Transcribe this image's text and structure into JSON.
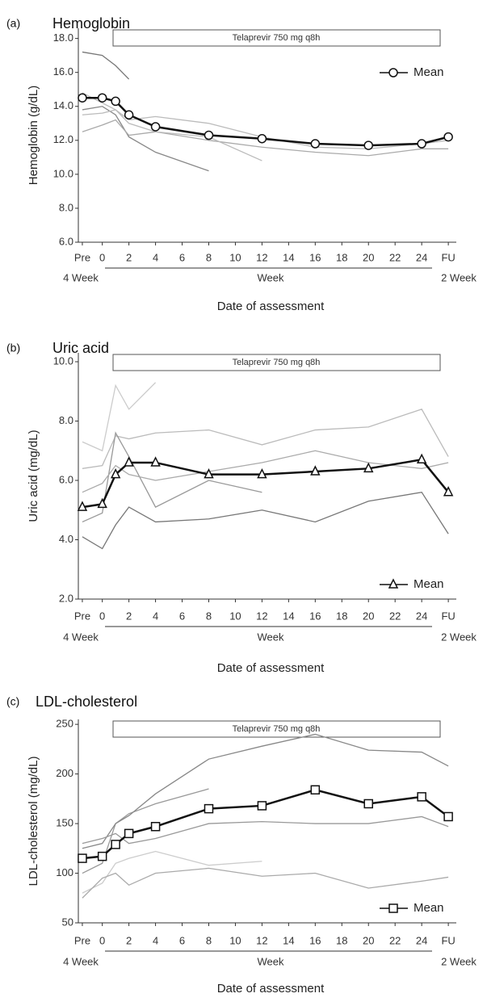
{
  "chart_data": [
    {
      "type": "line",
      "panel": "(a)",
      "title": "Hemoglobin",
      "treatment": "Telaprevir 750 mg q8h",
      "ylabel": "Hemoglobin (g/dL)",
      "xlabel": "Date of assessment",
      "x_period_labels": [
        "4 Week",
        "Week",
        "2 Week"
      ],
      "x": [
        -1.5,
        0,
        1,
        2,
        4,
        8,
        12,
        16,
        20,
        24,
        26
      ],
      "xlim": [
        -1.8,
        26.6
      ],
      "xticks": [
        {
          "value": -1.5,
          "label": "Pre"
        },
        0,
        2,
        4,
        6,
        8,
        10,
        12,
        14,
        16,
        18,
        20,
        22,
        24,
        {
          "value": 26,
          "label": "FU"
        }
      ],
      "ylim": [
        6,
        18.6
      ],
      "yticks": [
        {
          "value": 6,
          "label": "6.0"
        },
        {
          "value": 8,
          "label": "8.0"
        },
        {
          "value": 10,
          "label": "10.0"
        },
        {
          "value": 12,
          "label": "12.0"
        },
        {
          "value": 14,
          "label": "14.0"
        },
        {
          "value": 16,
          "label": "16.0"
        },
        {
          "value": 18,
          "label": "18.0"
        }
      ],
      "legend": "upper right",
      "marker": "circle",
      "series": [
        {
          "color": "#777",
          "values": [
            17.2,
            17.0,
            16.4,
            15.6,
            null,
            null,
            null,
            null,
            null,
            null,
            null
          ]
        },
        {
          "color": "#888",
          "values": [
            13.8,
            14.0,
            13.5,
            12.2,
            11.3,
            10.2,
            null,
            null,
            null,
            null,
            null
          ]
        },
        {
          "color": "#bbb",
          "values": [
            14.8,
            14.2,
            13.8,
            13.2,
            13.4,
            13.0,
            12.2,
            11.6,
            11.5,
            11.8,
            12.0
          ]
        },
        {
          "color": "#aaa",
          "values": [
            12.5,
            12.9,
            13.2,
            12.3,
            12.5,
            12.0,
            11.6,
            11.3,
            11.1,
            11.5,
            11.5
          ]
        },
        {
          "color": "#bbb",
          "values": [
            13.5,
            13.6,
            13.8,
            13.0,
            12.5,
            12.2,
            10.8,
            null,
            null,
            null,
            null
          ]
        },
        {
          "name": "Mean",
          "color": "#111",
          "values": [
            14.5,
            14.5,
            14.3,
            13.5,
            12.8,
            12.3,
            12.1,
            11.8,
            11.7,
            11.8,
            12.2
          ]
        }
      ]
    },
    {
      "type": "line",
      "panel": "(b)",
      "title": "Uric acid",
      "treatment": "Telaprevir 750 mg q8h",
      "ylabel": "Uric acid (mg/dL)",
      "xlabel": "Date of assessment",
      "x_period_labels": [
        "4 Week",
        "Week",
        "2 Week"
      ],
      "x": [
        -1.5,
        0,
        1,
        2,
        4,
        8,
        12,
        16,
        20,
        24,
        26
      ],
      "xlim": [
        -1.8,
        26.6
      ],
      "xticks": [
        {
          "value": -1.5,
          "label": "Pre"
        },
        0,
        2,
        4,
        6,
        8,
        10,
        12,
        14,
        16,
        18,
        20,
        22,
        24,
        {
          "value": 26,
          "label": "FU"
        }
      ],
      "ylim": [
        2,
        10.3
      ],
      "yticks": [
        {
          "value": 2,
          "label": "2.0"
        },
        {
          "value": 4,
          "label": "4.0"
        },
        {
          "value": 6,
          "label": "6.0"
        },
        {
          "value": 8,
          "label": "8.0"
        },
        {
          "value": 10,
          "label": "10.0"
        }
      ],
      "legend": "lower right",
      "marker": "triangle",
      "series": [
        {
          "color": "#ccc",
          "values": [
            7.3,
            7.0,
            9.2,
            8.4,
            9.3,
            null,
            null,
            null,
            null,
            null,
            null
          ]
        },
        {
          "color": "#bbb",
          "values": [
            6.4,
            6.5,
            7.5,
            7.4,
            7.6,
            7.7,
            7.2,
            7.7,
            7.8,
            8.4,
            6.8
          ]
        },
        {
          "color": "#777",
          "values": [
            4.1,
            3.7,
            4.5,
            5.1,
            4.6,
            4.7,
            5.0,
            4.6,
            5.3,
            5.6,
            4.2
          ]
        },
        {
          "color": "#999",
          "values": [
            4.6,
            4.9,
            7.6,
            6.8,
            5.1,
            6.0,
            5.6,
            null,
            null,
            null,
            null
          ]
        },
        {
          "color": "#aaa",
          "values": [
            5.6,
            5.9,
            6.5,
            6.2,
            6.0,
            6.3,
            6.6,
            7.0,
            6.6,
            6.4,
            6.6
          ]
        },
        {
          "name": "Mean",
          "color": "#111",
          "values": [
            5.1,
            5.2,
            6.2,
            6.6,
            6.6,
            6.2,
            6.2,
            6.3,
            6.4,
            6.7,
            5.6
          ]
        }
      ]
    },
    {
      "type": "line",
      "panel": "(c)",
      "title": "LDL-cholesterol",
      "treatment": "Telaprevir 750 mg q8h",
      "ylabel": "LDL-cholesterol (mg/dL)",
      "xlabel": "Date of assessment",
      "x_period_labels": [
        "4 Week",
        "Week",
        "2 Week"
      ],
      "x": [
        -1.5,
        0,
        1,
        2,
        4,
        8,
        12,
        16,
        20,
        24,
        26
      ],
      "xlim": [
        -1.8,
        26.6
      ],
      "xticks": [
        {
          "value": -1.5,
          "label": "Pre"
        },
        0,
        2,
        4,
        6,
        8,
        10,
        12,
        14,
        16,
        18,
        20,
        22,
        24,
        {
          "value": 26,
          "label": "FU"
        }
      ],
      "ylim": [
        50,
        255
      ],
      "yticks": [
        50,
        100,
        150,
        200,
        250
      ],
      "legend": "lower right",
      "marker": "square",
      "series": [
        {
          "color": "#999",
          "values": [
            100,
            110,
            150,
            160,
            170,
            185,
            null,
            null,
            null,
            null,
            null
          ]
        },
        {
          "color": "#888",
          "values": [
            125,
            130,
            150,
            158,
            180,
            215,
            228,
            240,
            224,
            222,
            208
          ]
        },
        {
          "color": "#ccc",
          "values": [
            80,
            90,
            110,
            115,
            122,
            108,
            112,
            null,
            null,
            null,
            null
          ]
        },
        {
          "color": "#aaa",
          "values": [
            75,
            95,
            100,
            88,
            100,
            105,
            97,
            100,
            85,
            92,
            96
          ]
        },
        {
          "color": "#999",
          "values": [
            130,
            135,
            140,
            130,
            135,
            150,
            152,
            150,
            150,
            157,
            147
          ]
        },
        {
          "name": "Mean",
          "color": "#111",
          "values": [
            115,
            117,
            129,
            140,
            147,
            165,
            168,
            184,
            170,
            177,
            157
          ]
        }
      ]
    }
  ]
}
